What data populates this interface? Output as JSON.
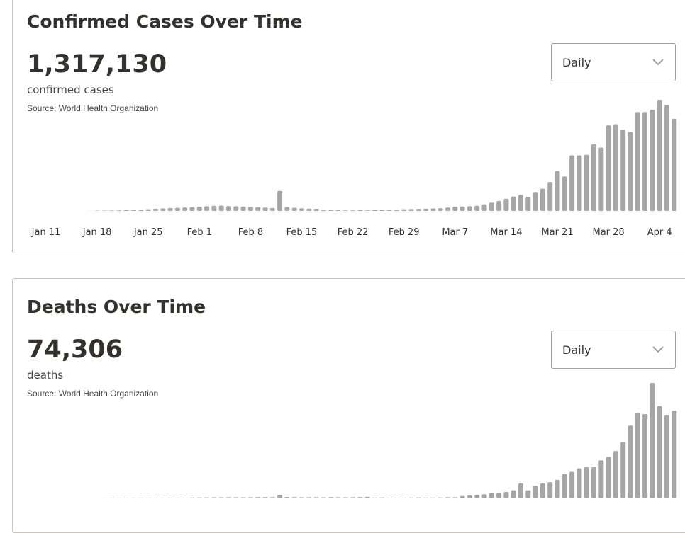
{
  "panels": [
    {
      "total": "1,317,130",
      "unit": "confirmed cases",
      "source": "Source: World Health Organization",
      "dropdown": "Daily"
    },
    {
      "total": "74,306",
      "unit": "deaths",
      "source": "Source: World Health Organization",
      "dropdown": "Daily"
    }
  ],
  "chart_data": [
    {
      "type": "bar",
      "title": "Confirmed Cases Over Time",
      "color": "#a6a6a6",
      "ylim": [
        0,
        100000
      ],
      "categories": [
        "Jan 11",
        null,
        null,
        null,
        null,
        null,
        null,
        "Jan 18",
        null,
        null,
        null,
        null,
        null,
        null,
        "Jan 25",
        null,
        null,
        null,
        null,
        null,
        null,
        "Feb 1",
        null,
        null,
        null,
        null,
        null,
        null,
        "Feb 8",
        null,
        null,
        null,
        null,
        null,
        null,
        "Feb 15",
        null,
        null,
        null,
        null,
        null,
        null,
        "Feb 22",
        null,
        null,
        null,
        null,
        null,
        null,
        "Feb 29",
        null,
        null,
        null,
        null,
        null,
        null,
        "Mar 7",
        null,
        null,
        null,
        null,
        null,
        null,
        "Mar 14",
        null,
        null,
        null,
        null,
        null,
        null,
        "Mar 21",
        null,
        null,
        null,
        null,
        null,
        null,
        "Mar 28",
        null,
        null,
        null,
        null,
        null,
        null,
        "Apr 4",
        null,
        null
      ],
      "values": [
        0,
        0,
        0,
        0,
        0,
        0,
        100,
        200,
        300,
        400,
        500,
        700,
        900,
        1000,
        1500,
        2000,
        2200,
        2600,
        2800,
        3000,
        3400,
        3800,
        4200,
        4500,
        4800,
        4400,
        4200,
        4000,
        3700,
        3400,
        3000,
        2600,
        18000,
        3500,
        2800,
        2400,
        2100,
        1900,
        1000,
        700,
        600,
        500,
        500,
        600,
        500,
        700,
        800,
        900,
        1200,
        1500,
        1700,
        1800,
        2000,
        2200,
        2500,
        3000,
        3800,
        4000,
        4200,
        4600,
        6000,
        7500,
        9000,
        11000,
        13000,
        14500,
        12500,
        17000,
        20000,
        26000,
        36000,
        31000,
        50000,
        50000,
        50500,
        60000,
        57000,
        77000,
        78000,
        73000,
        71000,
        89000,
        89000,
        91000,
        100000,
        95000,
        83000
      ]
    },
    {
      "type": "bar",
      "title": "Deaths Over Time",
      "color": "#a6a6a6",
      "ylim": [
        0,
        10000
      ],
      "values": [
        0,
        0,
        0,
        0,
        0,
        0,
        0,
        0,
        10,
        20,
        20,
        25,
        30,
        40,
        40,
        50,
        50,
        55,
        60,
        65,
        70,
        80,
        85,
        90,
        95,
        100,
        90,
        95,
        100,
        105,
        110,
        110,
        300,
        120,
        110,
        100,
        100,
        100,
        90,
        110,
        100,
        90,
        100,
        110,
        130,
        70,
        80,
        60,
        60,
        60,
        70,
        80,
        70,
        70,
        80,
        100,
        100,
        200,
        250,
        300,
        350,
        450,
        500,
        550,
        700,
        1300,
        700,
        1100,
        1300,
        1400,
        1600,
        2100,
        2300,
        2600,
        2700,
        2700,
        3300,
        3600,
        4100,
        4900,
        6300,
        7400,
        7300,
        10000,
        8000,
        7200,
        7600
      ]
    }
  ]
}
